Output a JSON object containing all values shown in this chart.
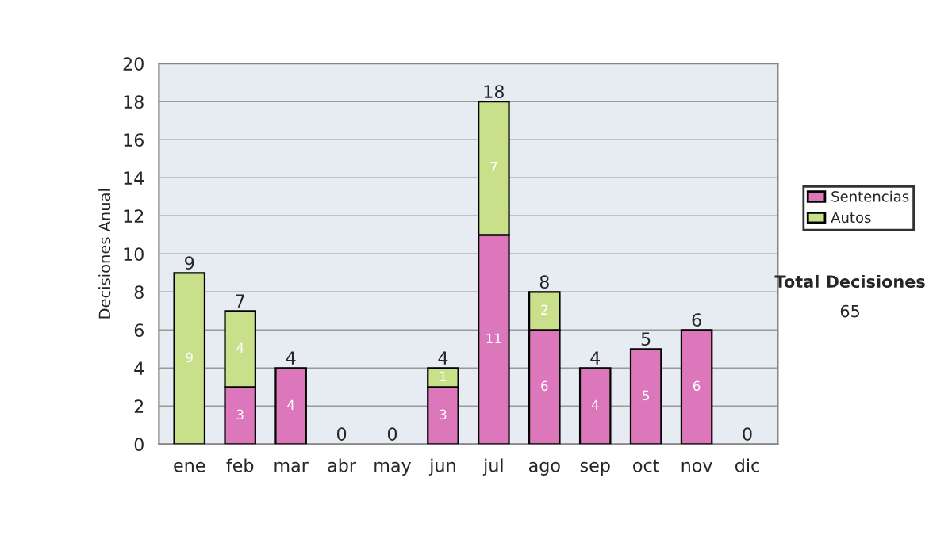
{
  "chart_data": {
    "type": "bar",
    "stacked": true,
    "ylabel": "Decisiones Anual",
    "categories": [
      "ene",
      "feb",
      "mar",
      "abr",
      "may",
      "jun",
      "jul",
      "ago",
      "sep",
      "oct",
      "nov",
      "dic"
    ],
    "series": [
      {
        "name": "Sentencias",
        "color": "#dd77bb",
        "values": [
          0,
          3,
          4,
          0,
          0,
          3,
          11,
          6,
          4,
          5,
          6,
          0
        ],
        "value_labels": [
          null,
          "3",
          "4",
          null,
          null,
          "3",
          "11",
          "6",
          "4",
          "5",
          "6",
          null
        ]
      },
      {
        "name": "Autos",
        "color": "#c8e08a",
        "values": [
          9,
          4,
          0,
          0,
          0,
          1,
          7,
          2,
          0,
          0,
          0,
          0
        ],
        "value_labels": [
          "9",
          "4",
          null,
          null,
          null,
          "1",
          "7",
          "2",
          null,
          null,
          null,
          null
        ]
      }
    ],
    "totals": [
      "9",
      "7",
      "4",
      "0",
      "0",
      "4",
      "18",
      "8",
      "4",
      "5",
      "6",
      "0"
    ],
    "ylim": [
      0,
      20
    ],
    "yticks": [
      0,
      2,
      4,
      6,
      8,
      10,
      12,
      14,
      16,
      18,
      20
    ],
    "grid": "y",
    "legend": "right",
    "annotations": [
      "Total Decisiones",
      "65"
    ]
  }
}
